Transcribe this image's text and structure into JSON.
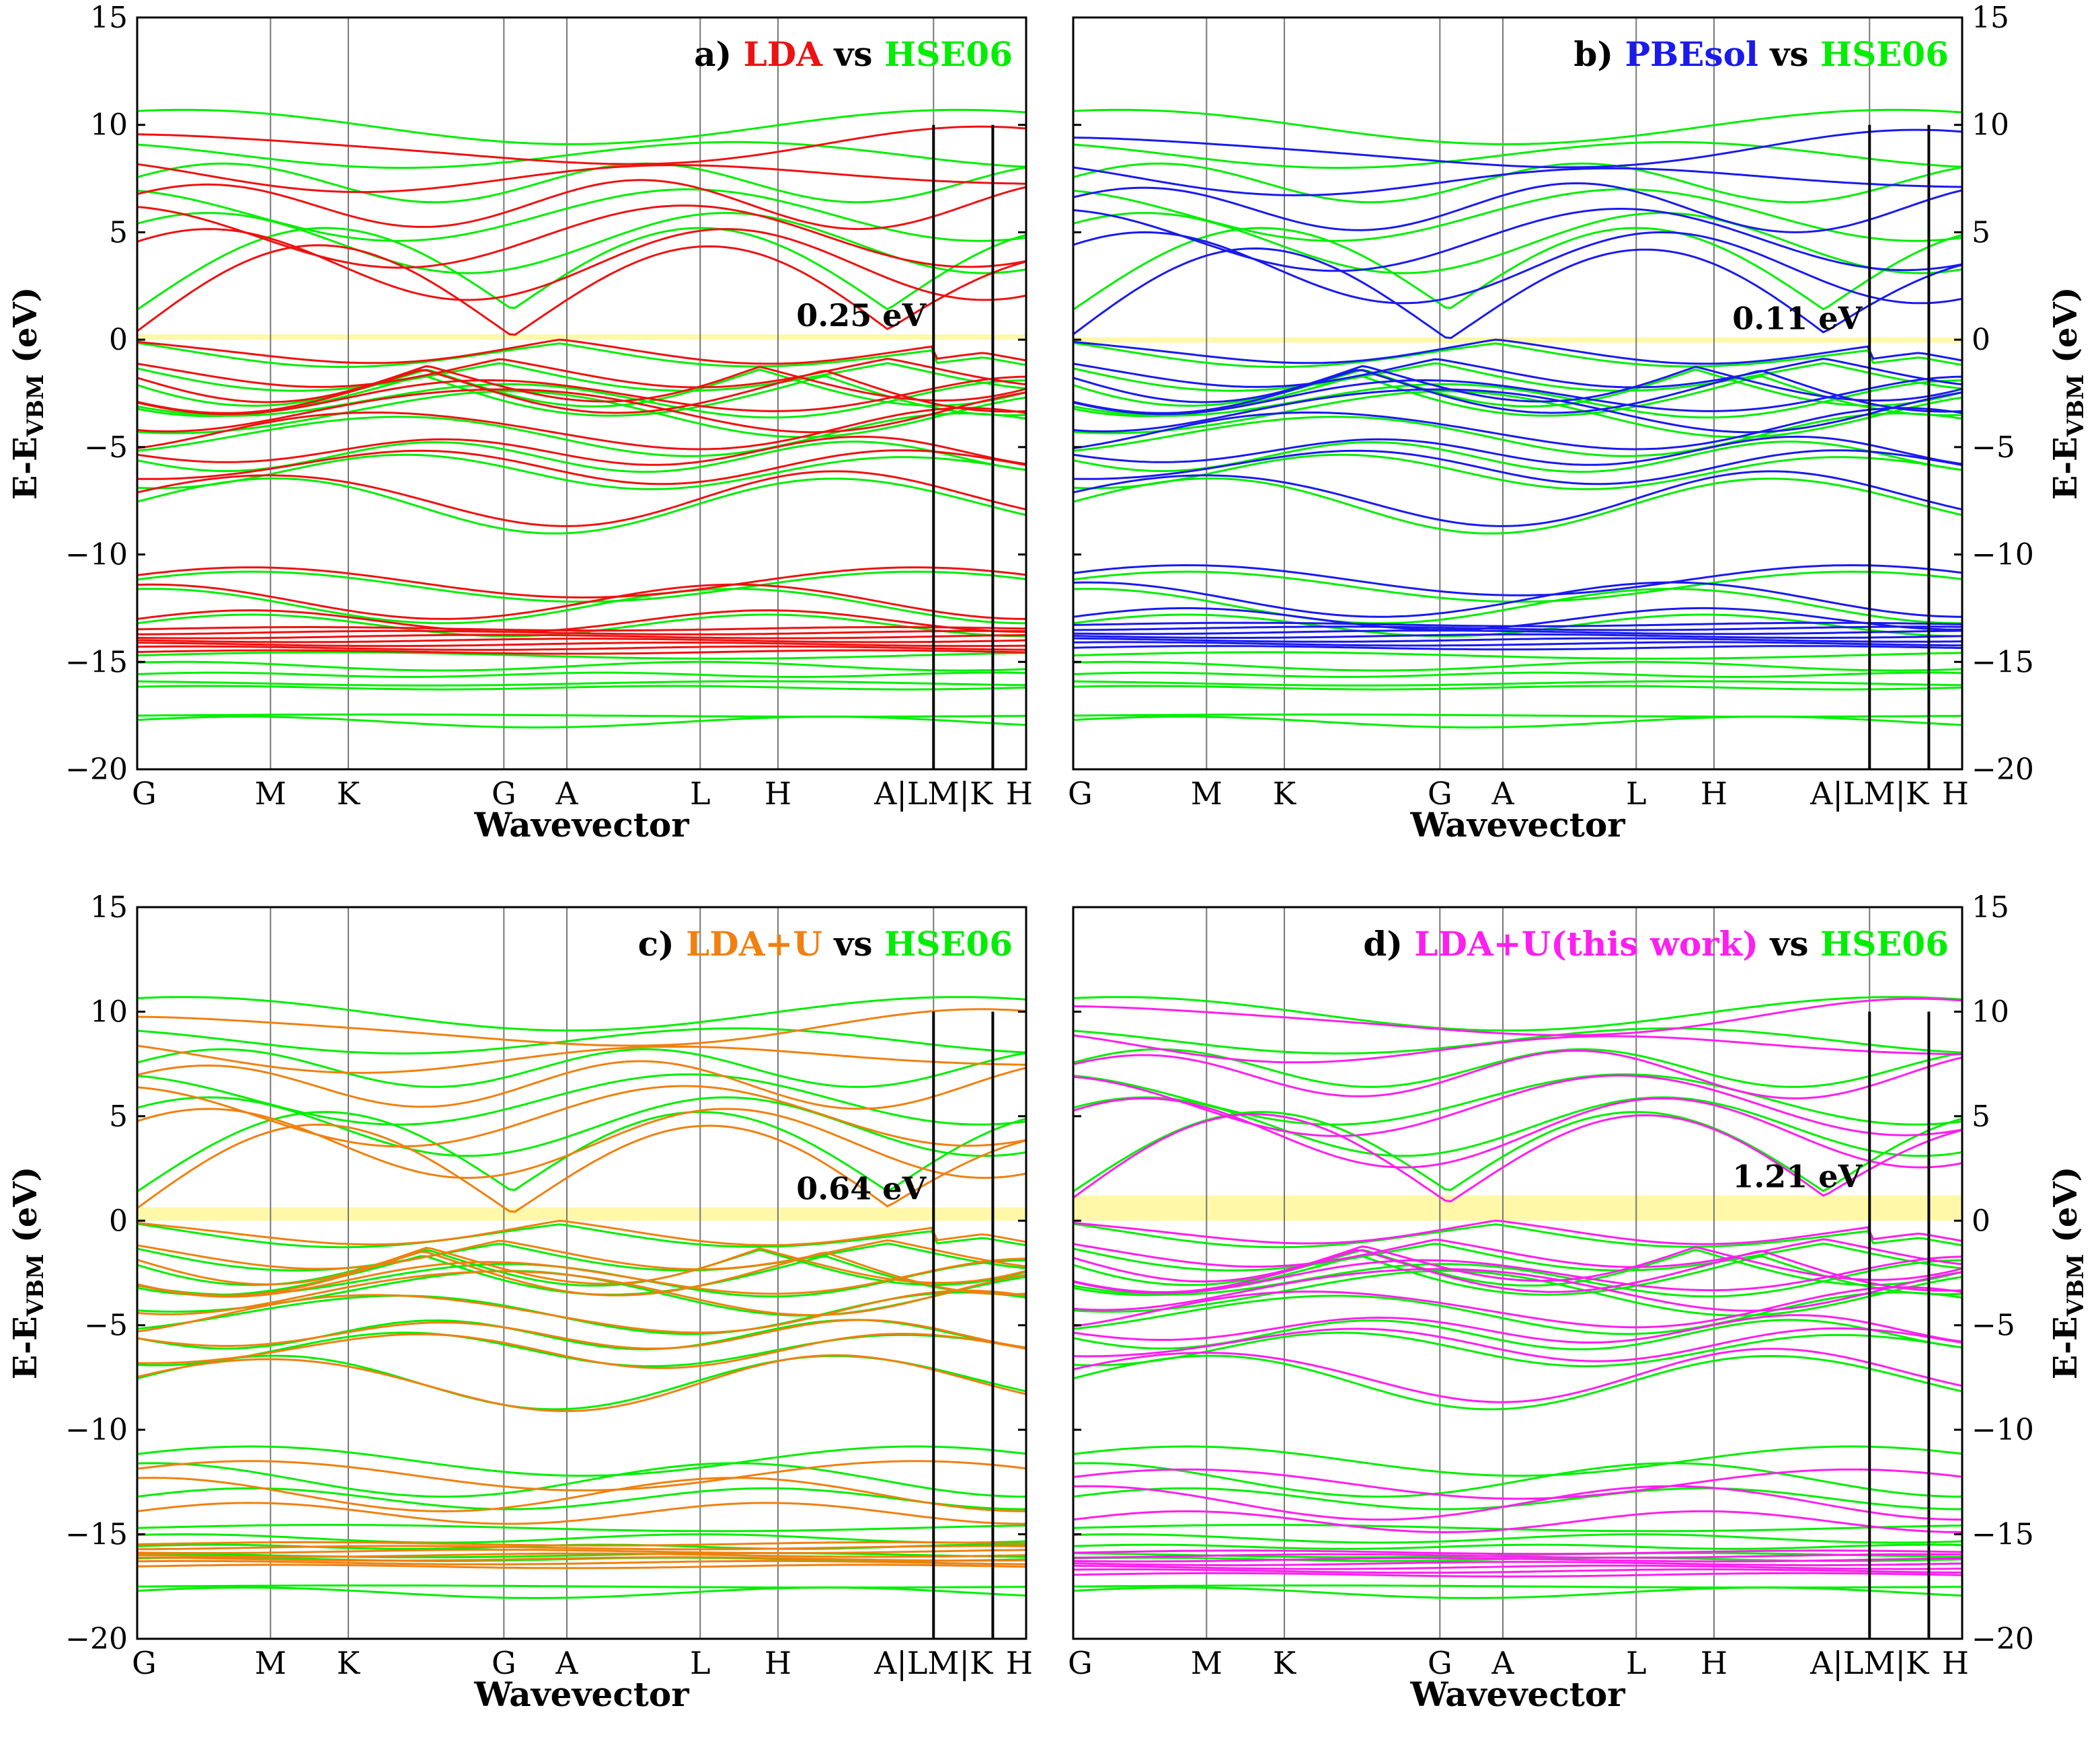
{
  "figure": {
    "shared": {
      "xlabel": "Wavevector",
      "ylabel_main": "E-E",
      "ylabel_sub": "VBM",
      "ylabel_unit": " (eV)",
      "vs_label": "vs",
      "reference_label": "HSE06",
      "reference_color": "#00ee00",
      "gap_band_color": "#fff8a8",
      "kpoint_labels": [
        "G",
        "M",
        "K",
        "G",
        "A",
        "L",
        "H",
        "A|LM|K",
        "H"
      ],
      "kpoint_positions": [
        0,
        1.8,
        2.85,
        4.95,
        5.8,
        7.6,
        8.65,
        10.75,
        12.0
      ],
      "break_positions": [
        10.75,
        11.55
      ],
      "xlim": [
        0,
        12.0
      ],
      "ylim": [
        -20,
        15
      ],
      "yticks": [
        -20,
        -15,
        -10,
        -5,
        0,
        5,
        10,
        15
      ],
      "ytick_labels": [
        "−20",
        "−15",
        "−10",
        "−5",
        "0",
        "5",
        "10",
        "15"
      ]
    },
    "panels": [
      {
        "prefix": "a)",
        "method": "LDA",
        "color": "#ee1111",
        "gap_label": "0.25 eV",
        "gap": 0.25,
        "cb_shift": -1.0,
        "vb_scale": 1.0,
        "semi_shift": 0.3,
        "low_shift": 2.0,
        "axis_side": "left"
      },
      {
        "prefix": "b)",
        "method": "PBEsol",
        "color": "#1a1aee",
        "gap_label": "0.11 eV",
        "gap": 0.11,
        "cb_shift": -1.15,
        "vb_scale": 1.0,
        "semi_shift": 0.4,
        "low_shift": 2.2,
        "axis_side": "right"
      },
      {
        "prefix": "c)",
        "method": "LDA+U",
        "color": "#f08010",
        "gap_label": "0.64 eV",
        "gap": 0.64,
        "cb_shift": -0.8,
        "vb_scale": 1.05,
        "semi_shift": -0.6,
        "low_shift": 0.0,
        "axis_side": "left"
      },
      {
        "prefix": "d)",
        "method": "LDA+U(this work)",
        "color": "#ff1ef0",
        "gap_label": "1.21 eV",
        "gap": 1.21,
        "cb_shift": -0.3,
        "vb_scale": 1.0,
        "semi_shift": -1.0,
        "low_shift": -0.4,
        "axis_side": "right"
      }
    ]
  },
  "chart_data": [
    {
      "type": "line",
      "title": "a) LDA vs HSE06",
      "xlabel": "Wavevector",
      "ylabel": "E-E_VBM (eV)",
      "ylim": [
        -20,
        15
      ],
      "x_ticks": [
        "G",
        "M",
        "K",
        "G",
        "A",
        "L",
        "H",
        "A|LM|K",
        "H"
      ],
      "series": [
        {
          "name": "LDA",
          "color": "#ee1111",
          "band_gap_eV": 0.25
        },
        {
          "name": "HSE06",
          "color": "#00ee00"
        }
      ],
      "annotations": [
        "0.25 eV"
      ]
    },
    {
      "type": "line",
      "title": "b) PBEsol vs HSE06",
      "xlabel": "Wavevector",
      "ylabel": "E-E_VBM (eV)",
      "ylim": [
        -20,
        15
      ],
      "x_ticks": [
        "G",
        "M",
        "K",
        "G",
        "A",
        "L",
        "H",
        "A|LM|K",
        "H"
      ],
      "series": [
        {
          "name": "PBEsol",
          "color": "#1a1aee",
          "band_gap_eV": 0.11
        },
        {
          "name": "HSE06",
          "color": "#00ee00"
        }
      ],
      "annotations": [
        "0.11 eV"
      ]
    },
    {
      "type": "line",
      "title": "c) LDA+U vs HSE06",
      "xlabel": "Wavevector",
      "ylabel": "E-E_VBM (eV)",
      "ylim": [
        -20,
        15
      ],
      "x_ticks": [
        "G",
        "M",
        "K",
        "G",
        "A",
        "L",
        "H",
        "A|LM|K",
        "H"
      ],
      "series": [
        {
          "name": "LDA+U",
          "color": "#f08010",
          "band_gap_eV": 0.64
        },
        {
          "name": "HSE06",
          "color": "#00ee00"
        }
      ],
      "annotations": [
        "0.64 eV"
      ]
    },
    {
      "type": "line",
      "title": "d) LDA+U(this work) vs HSE06",
      "xlabel": "Wavevector",
      "ylabel": "E-E_VBM (eV)",
      "ylim": [
        -20,
        15
      ],
      "x_ticks": [
        "G",
        "M",
        "K",
        "G",
        "A",
        "L",
        "H",
        "A|LM|K",
        "H"
      ],
      "series": [
        {
          "name": "LDA+U(this work)",
          "color": "#ff1ef0",
          "band_gap_eV": 1.21
        },
        {
          "name": "HSE06",
          "color": "#00ee00"
        }
      ],
      "annotations": [
        "1.21 eV"
      ]
    }
  ]
}
